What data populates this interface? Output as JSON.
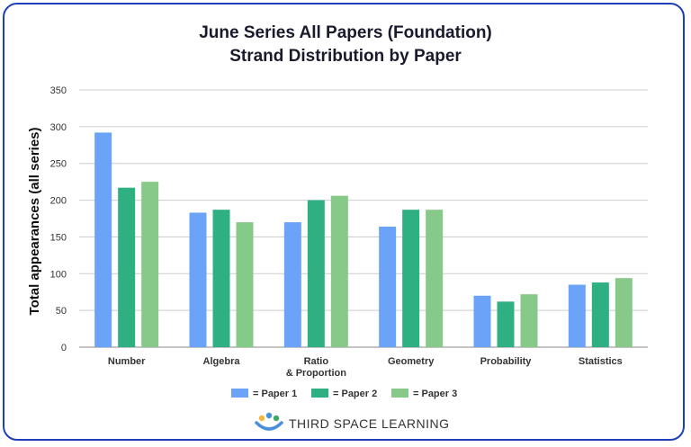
{
  "chart_data": {
    "type": "bar",
    "title": [
      "June Series All Papers (Foundation)",
      "Strand Distribution by Paper"
    ],
    "ylabel": "Total appearances (all series)",
    "xlabel": "",
    "ylim": [
      0,
      350
    ],
    "yticks": [
      0,
      50,
      100,
      150,
      200,
      250,
      300,
      350
    ],
    "grid": true,
    "legend_position": "bottom",
    "categories": [
      [
        "Number"
      ],
      [
        "Algebra"
      ],
      [
        "Ratio",
        "& Proportion"
      ],
      [
        "Geometry"
      ],
      [
        "Probability"
      ],
      [
        "Statistics"
      ]
    ],
    "series": [
      {
        "name": "= Paper 1",
        "color": "#6aa3f8",
        "values": [
          292,
          183,
          170,
          164,
          70,
          85
        ]
      },
      {
        "name": "= Paper 2",
        "color": "#2eb082",
        "values": [
          217,
          187,
          200,
          187,
          62,
          88
        ]
      },
      {
        "name": "= Paper 3",
        "color": "#86c988",
        "values": [
          225,
          170,
          206,
          187,
          72,
          94
        ]
      }
    ]
  },
  "brand": {
    "name": "THIRD SPACE LEARNING",
    "logo_icon": "third-space-learning-logo-icon",
    "logo_colors": [
      "#f5b73b",
      "#4a90d9",
      "#3aaa6b"
    ]
  }
}
